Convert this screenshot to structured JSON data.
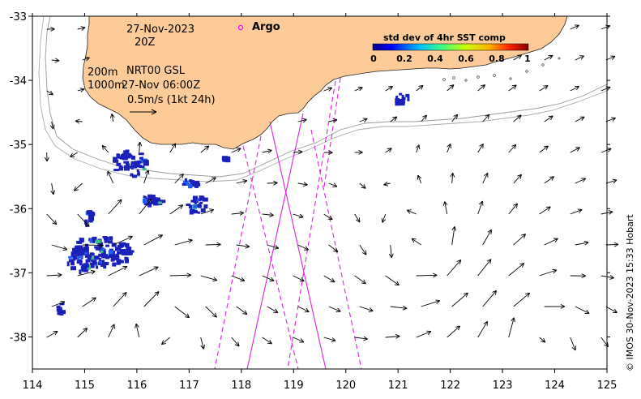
{
  "map": {
    "date_line1": "27-Nov-2023",
    "date_line2": "20Z",
    "depth_line1_a": "200m",
    "depth_line1_b": "NRT00 GSL",
    "depth_line2_a": "1000m",
    "depth_line2_b": "27-Nov 06:00Z",
    "scale_label": "0.5m/s (1kt 24h)",
    "legend_argo": "Argo",
    "credit": "© IMOS 30-Nov-2023 15:33 Hobart",
    "land_color": "#FDCB97",
    "argo_color": "#FF00FF",
    "track_color": "#E020E0",
    "data_color": "#1A20B8"
  },
  "colorbar": {
    "title": "std dev of 4hr SST comp",
    "ticks": [
      "0",
      "0.2",
      "0.4",
      "0.6",
      "0.8",
      "1"
    ]
  },
  "chart_data": {
    "type": "map",
    "x_axis": {
      "range": [
        114,
        125
      ],
      "ticks": [
        "114",
        "115",
        "116",
        "117",
        "118",
        "119",
        "120",
        "121",
        "122",
        "123",
        "124",
        "125"
      ]
    },
    "y_axis": {
      "range": [
        -38.5,
        -33
      ],
      "ticks": [
        "-33",
        "-34",
        "-35",
        "-36",
        "-37",
        "-38"
      ]
    }
  }
}
